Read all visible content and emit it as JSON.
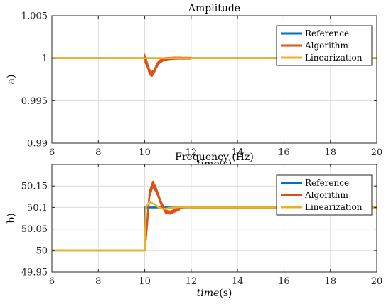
{
  "chart_data": [
    {
      "type": "line",
      "title": "Amplitude",
      "ylabel": "a)",
      "xlabel_main": "time",
      "xlabel_unit": "(s)",
      "xlim": [
        6,
        20
      ],
      "ylim": [
        0.99,
        1.005
      ],
      "xticks": [
        "6",
        "8",
        "10",
        "12",
        "14",
        "16",
        "18",
        "20"
      ],
      "yticks": [
        "0.99",
        "0.995",
        "1",
        "1.005"
      ],
      "xtick_values": [
        6,
        8,
        10,
        12,
        14,
        16,
        18,
        20
      ],
      "ytick_values": [
        0.99,
        0.995,
        1,
        1.005
      ],
      "grid": true,
      "legend_position": "top-right",
      "series": [
        {
          "name": "Reference",
          "color": "#0072BD",
          "x": [
            6,
            20
          ],
          "y": [
            1.0,
            1.0
          ]
        },
        {
          "name": "Algorithm",
          "color": "#D95319",
          "x": [
            6,
            10.0,
            10.1,
            10.2,
            10.3,
            10.4,
            10.5,
            10.6,
            10.8,
            11.0,
            11.3,
            11.6,
            12.0,
            20
          ],
          "y": [
            1.0,
            1.0,
            0.9993,
            0.9984,
            0.9981,
            0.9984,
            0.999,
            0.9995,
            0.99985,
            0.99995,
            1.0,
            1.0,
            1.0,
            1.0
          ],
          "band": 0.0005
        },
        {
          "name": "Linearization",
          "color": "#EDB120",
          "x": [
            6,
            20
          ],
          "y": [
            1.0,
            1.0
          ]
        }
      ]
    },
    {
      "type": "line",
      "title": "Frequency (Hz)",
      "ylabel": "b)",
      "xlabel_main": "time",
      "xlabel_unit": "(s)",
      "xlim": [
        6,
        20
      ],
      "ylim": [
        49.95,
        50.2
      ],
      "xticks": [
        "6",
        "8",
        "10",
        "12",
        "14",
        "16",
        "18",
        "20"
      ],
      "yticks": [
        "49.95",
        "50",
        "50.05",
        "50.1",
        "50.15"
      ],
      "xtick_values": [
        6,
        8,
        10,
        12,
        14,
        16,
        18,
        20
      ],
      "ytick_values": [
        49.95,
        50,
        50.05,
        50.1,
        50.15
      ],
      "grid": true,
      "legend_position": "top-right",
      "series": [
        {
          "name": "Reference",
          "color": "#0072BD",
          "x": [
            6,
            10.0,
            10.0,
            20
          ],
          "y": [
            50.0,
            50.0,
            50.1,
            50.1
          ]
        },
        {
          "name": "Algorithm",
          "color": "#D95319",
          "x": [
            6,
            10.0,
            10.1,
            10.2,
            10.35,
            10.5,
            10.7,
            10.9,
            11.1,
            11.4,
            11.7,
            12.0,
            12.5,
            20
          ],
          "y": [
            50.0,
            50.0,
            50.06,
            50.13,
            50.155,
            50.14,
            50.11,
            50.09,
            50.088,
            50.095,
            50.102,
            50.1,
            50.1,
            50.1
          ],
          "band_start": 10.05,
          "band_end": 11.5,
          "band": 0.012
        },
        {
          "name": "Linearization",
          "color": "#EDB120",
          "x": [
            6,
            10.0,
            10.05,
            10.2,
            10.4,
            10.6,
            10.8,
            11.0,
            11.5,
            12.0,
            20
          ],
          "y": [
            50.0,
            50.0,
            50.1,
            50.113,
            50.108,
            50.1,
            50.096,
            50.098,
            50.101,
            50.1,
            50.1
          ]
        }
      ]
    }
  ]
}
